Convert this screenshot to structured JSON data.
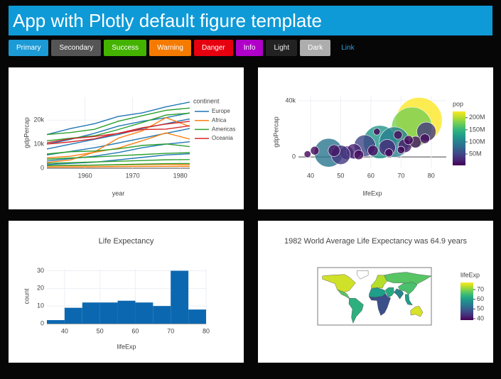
{
  "header": {
    "title": "App with Plotly default figure template"
  },
  "buttons": [
    "Primary",
    "Secondary",
    "Success",
    "Warning",
    "Danger",
    "Info",
    "Light",
    "Dark",
    "Link"
  ],
  "chart_data": [
    {
      "type": "line",
      "x_title": "year",
      "y_title": "gdpPercap",
      "x": [
        1952,
        1957,
        1962,
        1967,
        1972,
        1977,
        1982
      ],
      "xlim": [
        1952,
        1982
      ],
      "xticks": [
        1960,
        1970,
        1980
      ],
      "ylim": [
        0,
        29500
      ],
      "yticks": [
        0,
        {
          "value": 10000,
          "label": "10k"
        },
        {
          "value": 20000,
          "label": "20k"
        }
      ],
      "grid": true,
      "legend": {
        "title": "continent"
      },
      "series": [
        {
          "name": "Europe",
          "color": "#1f77b4",
          "lines": [
            [
              14000,
              16500,
              18500,
              21500,
              23000,
              25500,
              27500
            ],
            [
              10000,
              12000,
              14500,
              17500,
              19500,
              21000,
              23000
            ],
            [
              8000,
              10000,
              12000,
              14000,
              16500,
              18500,
              20500
            ],
            [
              5500,
              7000,
              8500,
              10500,
              12500,
              14500,
              16500
            ],
            [
              3000,
              4000,
              5000,
              6500,
              8500,
              10000,
              11000
            ],
            [
              1500,
              2000,
              2500,
              3500,
              4500,
              5500,
              6000
            ]
          ]
        },
        {
          "name": "Africa",
          "color": "#ff7f0e",
          "lines": [
            [
              2390,
              3450,
              6760,
              12500,
              15500,
              21010,
              17360
            ],
            [
              4290,
              5000,
              6630,
              8360,
              11400,
              14700,
              12100
            ],
            [
              1000,
              1100,
              1200,
              1400,
              1500,
              1600,
              1500
            ],
            [
              500,
              550,
              600,
              700,
              750,
              800,
              780
            ]
          ]
        },
        {
          "name": "Americas",
          "color": "#2ca02c",
          "lines": [
            [
              13990,
              14850,
              16170,
              19530,
              21810,
              24070,
              25010
            ],
            [
              11370,
              12490,
              13460,
              16080,
              18970,
              22090,
              22900
            ],
            [
              5900,
              6860,
              7130,
              8050,
              9440,
              10080,
              8990
            ],
            [
              3760,
              4250,
              4650,
              5170,
              5680,
              6190,
              6450
            ],
            [
              2000,
              2300,
              2600,
              2900,
              3200,
              3500,
              3600
            ],
            [
              1100,
              1200,
              1300,
              1500,
              1700,
              1900,
              1950
            ]
          ]
        },
        {
          "name": "Oceania",
          "color": "#d62728",
          "lines": [
            [
              10040,
              10950,
              12220,
              14530,
              16790,
              18330,
              19480
            ],
            [
              10560,
              12250,
              13180,
              14460,
              16050,
              16230,
              17630
            ]
          ]
        }
      ]
    },
    {
      "type": "scatter",
      "x_title": "lifeExp",
      "y_title": "gdpPercap",
      "xlim": [
        36,
        85
      ],
      "xticks": [
        40,
        50,
        60,
        70,
        80
      ],
      "ylim": [
        -8000,
        43500
      ],
      "yticks": [
        0,
        {
          "value": 40000,
          "label": "40k"
        }
      ],
      "grid": true,
      "x": [
        76,
        73.6,
        63,
        46,
        67.8,
        58,
        52,
        54.4,
        50,
        65.4,
        78.4,
        71.3,
        47.8,
        74.8,
        39,
        41.4,
        56,
        60.7,
        77.9,
        69,
        62,
        70,
        72.5,
        66
      ],
      "y": [
        26000,
        21000,
        10600,
        3000,
        10600,
        8000,
        3000,
        4000,
        1500,
        6600,
        18000,
        8000,
        4500,
        10600,
        2000,
        4500,
        1500,
        4500,
        13000,
        15700,
        18000,
        5000,
        12000,
        3000
      ],
      "size": [
        230000000,
        180000000,
        120000000,
        90000000,
        100000000,
        50000000,
        20000000,
        25000000,
        40000000,
        30000000,
        40000000,
        20000000,
        15000000,
        15000000,
        5000000,
        8000000,
        10000000,
        12000000,
        10000000,
        8000000,
        5000000,
        6000000,
        9000000,
        7000000
      ],
      "colorbar": {
        "title": "pop",
        "lim": [
          3000000,
          226000000
        ],
        "ticks": [
          {
            "value": 50000000,
            "label": "50M"
          },
          {
            "value": 100000000,
            "label": "100M"
          },
          {
            "value": 150000000,
            "label": "150M"
          },
          {
            "value": 200000000,
            "label": "200M"
          }
        ],
        "colors": [
          "#440154",
          "#482878",
          "#3e4989",
          "#31688e",
          "#26828e",
          "#1f9e89",
          "#35b779",
          "#6ece58",
          "#b5de2b",
          "#fde725"
        ]
      }
    },
    {
      "type": "histogram",
      "title": "Life Expectancy",
      "x_title": "lifeExp",
      "y_title": "count",
      "bins": [
        35,
        40,
        45,
        50,
        55,
        60,
        65,
        70,
        75,
        80
      ],
      "values": [
        2,
        9,
        12,
        12,
        13,
        12,
        10,
        30,
        8
      ],
      "color": "#0b68b0",
      "xlim": [
        35,
        80
      ],
      "xticks": [
        40,
        50,
        60,
        70,
        80
      ],
      "ylim": [
        0,
        31
      ],
      "yticks": [
        0,
        10,
        20,
        30
      ],
      "grid": true
    },
    {
      "type": "choropleth",
      "title": "1982 World Average Life Expectancy was 64.9 years",
      "values": [
        74.6,
        67,
        63,
        73,
        67,
        60,
        48,
        62,
        56,
        66,
        60,
        75
      ],
      "colorbar": {
        "title": "lifeExp",
        "lim": [
          38.5,
          77.3
        ],
        "ticks": [
          40,
          50,
          60,
          70
        ],
        "colors": [
          "#440154",
          "#482878",
          "#3e4989",
          "#31688e",
          "#26828e",
          "#1f9e89",
          "#35b779",
          "#6ece58",
          "#b5de2b",
          "#fde725"
        ]
      }
    }
  ]
}
